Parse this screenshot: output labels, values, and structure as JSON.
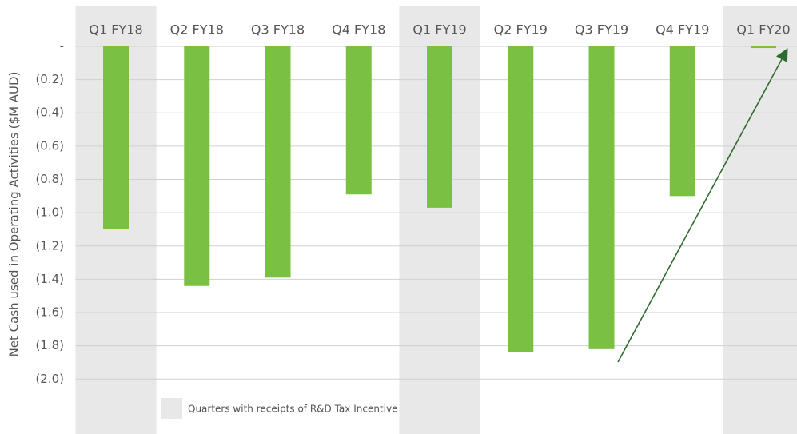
{
  "chart_data": {
    "type": "bar",
    "y_axis_label": "Net Cash used in Operating Activities ($M AUD)",
    "categories": [
      "Q1 FY18",
      "Q2 FY18",
      "Q3 FY18",
      "Q4 FY18",
      "Q1 FY19",
      "Q2 FY19",
      "Q3 FY19",
      "Q4 FY19",
      "Q1 FY20"
    ],
    "values": [
      -1.1,
      -1.44,
      -1.39,
      -0.89,
      -0.97,
      -1.84,
      -1.82,
      -0.9,
      -0.01
    ],
    "color": "#7ac143",
    "highlight": [
      true,
      false,
      false,
      false,
      true,
      false,
      false,
      false,
      true
    ],
    "highlight_color": "#e8e8e8",
    "legend": "Quarters with receipts of R&D Tax Incentive",
    "ylim": [
      -2.33,
      0.24
    ],
    "yticks": [
      {
        "value": 0,
        "label": "-"
      },
      {
        "value": -0.2,
        "label": "(0.2)"
      },
      {
        "value": -0.4,
        "label": "(0.4)"
      },
      {
        "value": -0.6,
        "label": "(0.6)"
      },
      {
        "value": -0.8,
        "label": "(0.8)"
      },
      {
        "value": -1.0,
        "label": "(1.0)"
      },
      {
        "value": -1.2,
        "label": "(1.2)"
      },
      {
        "value": -1.4,
        "label": "(1.4)"
      },
      {
        "value": -1.6,
        "label": "(1.6)"
      },
      {
        "value": -1.8,
        "label": "(1.8)"
      },
      {
        "value": -2.0,
        "label": "(2.0)"
      }
    ],
    "grid": true
  }
}
